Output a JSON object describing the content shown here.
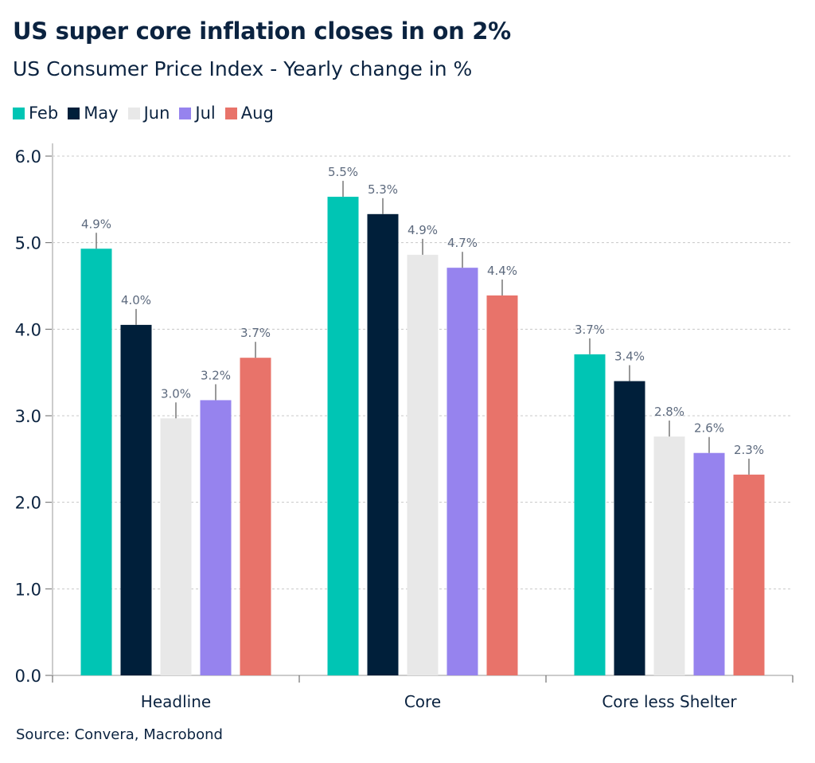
{
  "title": "US super core inflation closes in on 2%",
  "subtitle": "US Consumer Price Index - Yearly change in %",
  "source": "Source: Convera, Macrobond",
  "chart_data": {
    "type": "bar",
    "categories": [
      "Headline",
      "Core",
      "Core less Shelter"
    ],
    "series": [
      {
        "name": "Feb",
        "color": "#00C5B4",
        "values": [
          4.93,
          5.53,
          3.71
        ],
        "labels": [
          "4.9%",
          "5.5%",
          "3.7%"
        ]
      },
      {
        "name": "May",
        "color": "#001F3A",
        "values": [
          4.05,
          5.33,
          3.4
        ],
        "labels": [
          "4.0%",
          "5.3%",
          "3.4%"
        ]
      },
      {
        "name": "Jun",
        "color": "#E8E8E8",
        "values": [
          2.97,
          4.86,
          2.76
        ],
        "labels": [
          "3.0%",
          "4.9%",
          "2.8%"
        ]
      },
      {
        "name": "Jul",
        "color": "#9683EE",
        "values": [
          3.18,
          4.71,
          2.57
        ],
        "labels": [
          "3.2%",
          "4.7%",
          "2.6%"
        ]
      },
      {
        "name": "Aug",
        "color": "#E8736A",
        "values": [
          3.67,
          4.39,
          2.32
        ],
        "labels": [
          "3.7%",
          "4.4%",
          "2.3%"
        ]
      }
    ],
    "ylim": [
      0,
      6
    ],
    "yticks": [
      "0.0",
      "1.0",
      "2.0",
      "3.0",
      "4.0",
      "5.0",
      "6.0"
    ],
    "grid": true,
    "legend": "top-left"
  }
}
